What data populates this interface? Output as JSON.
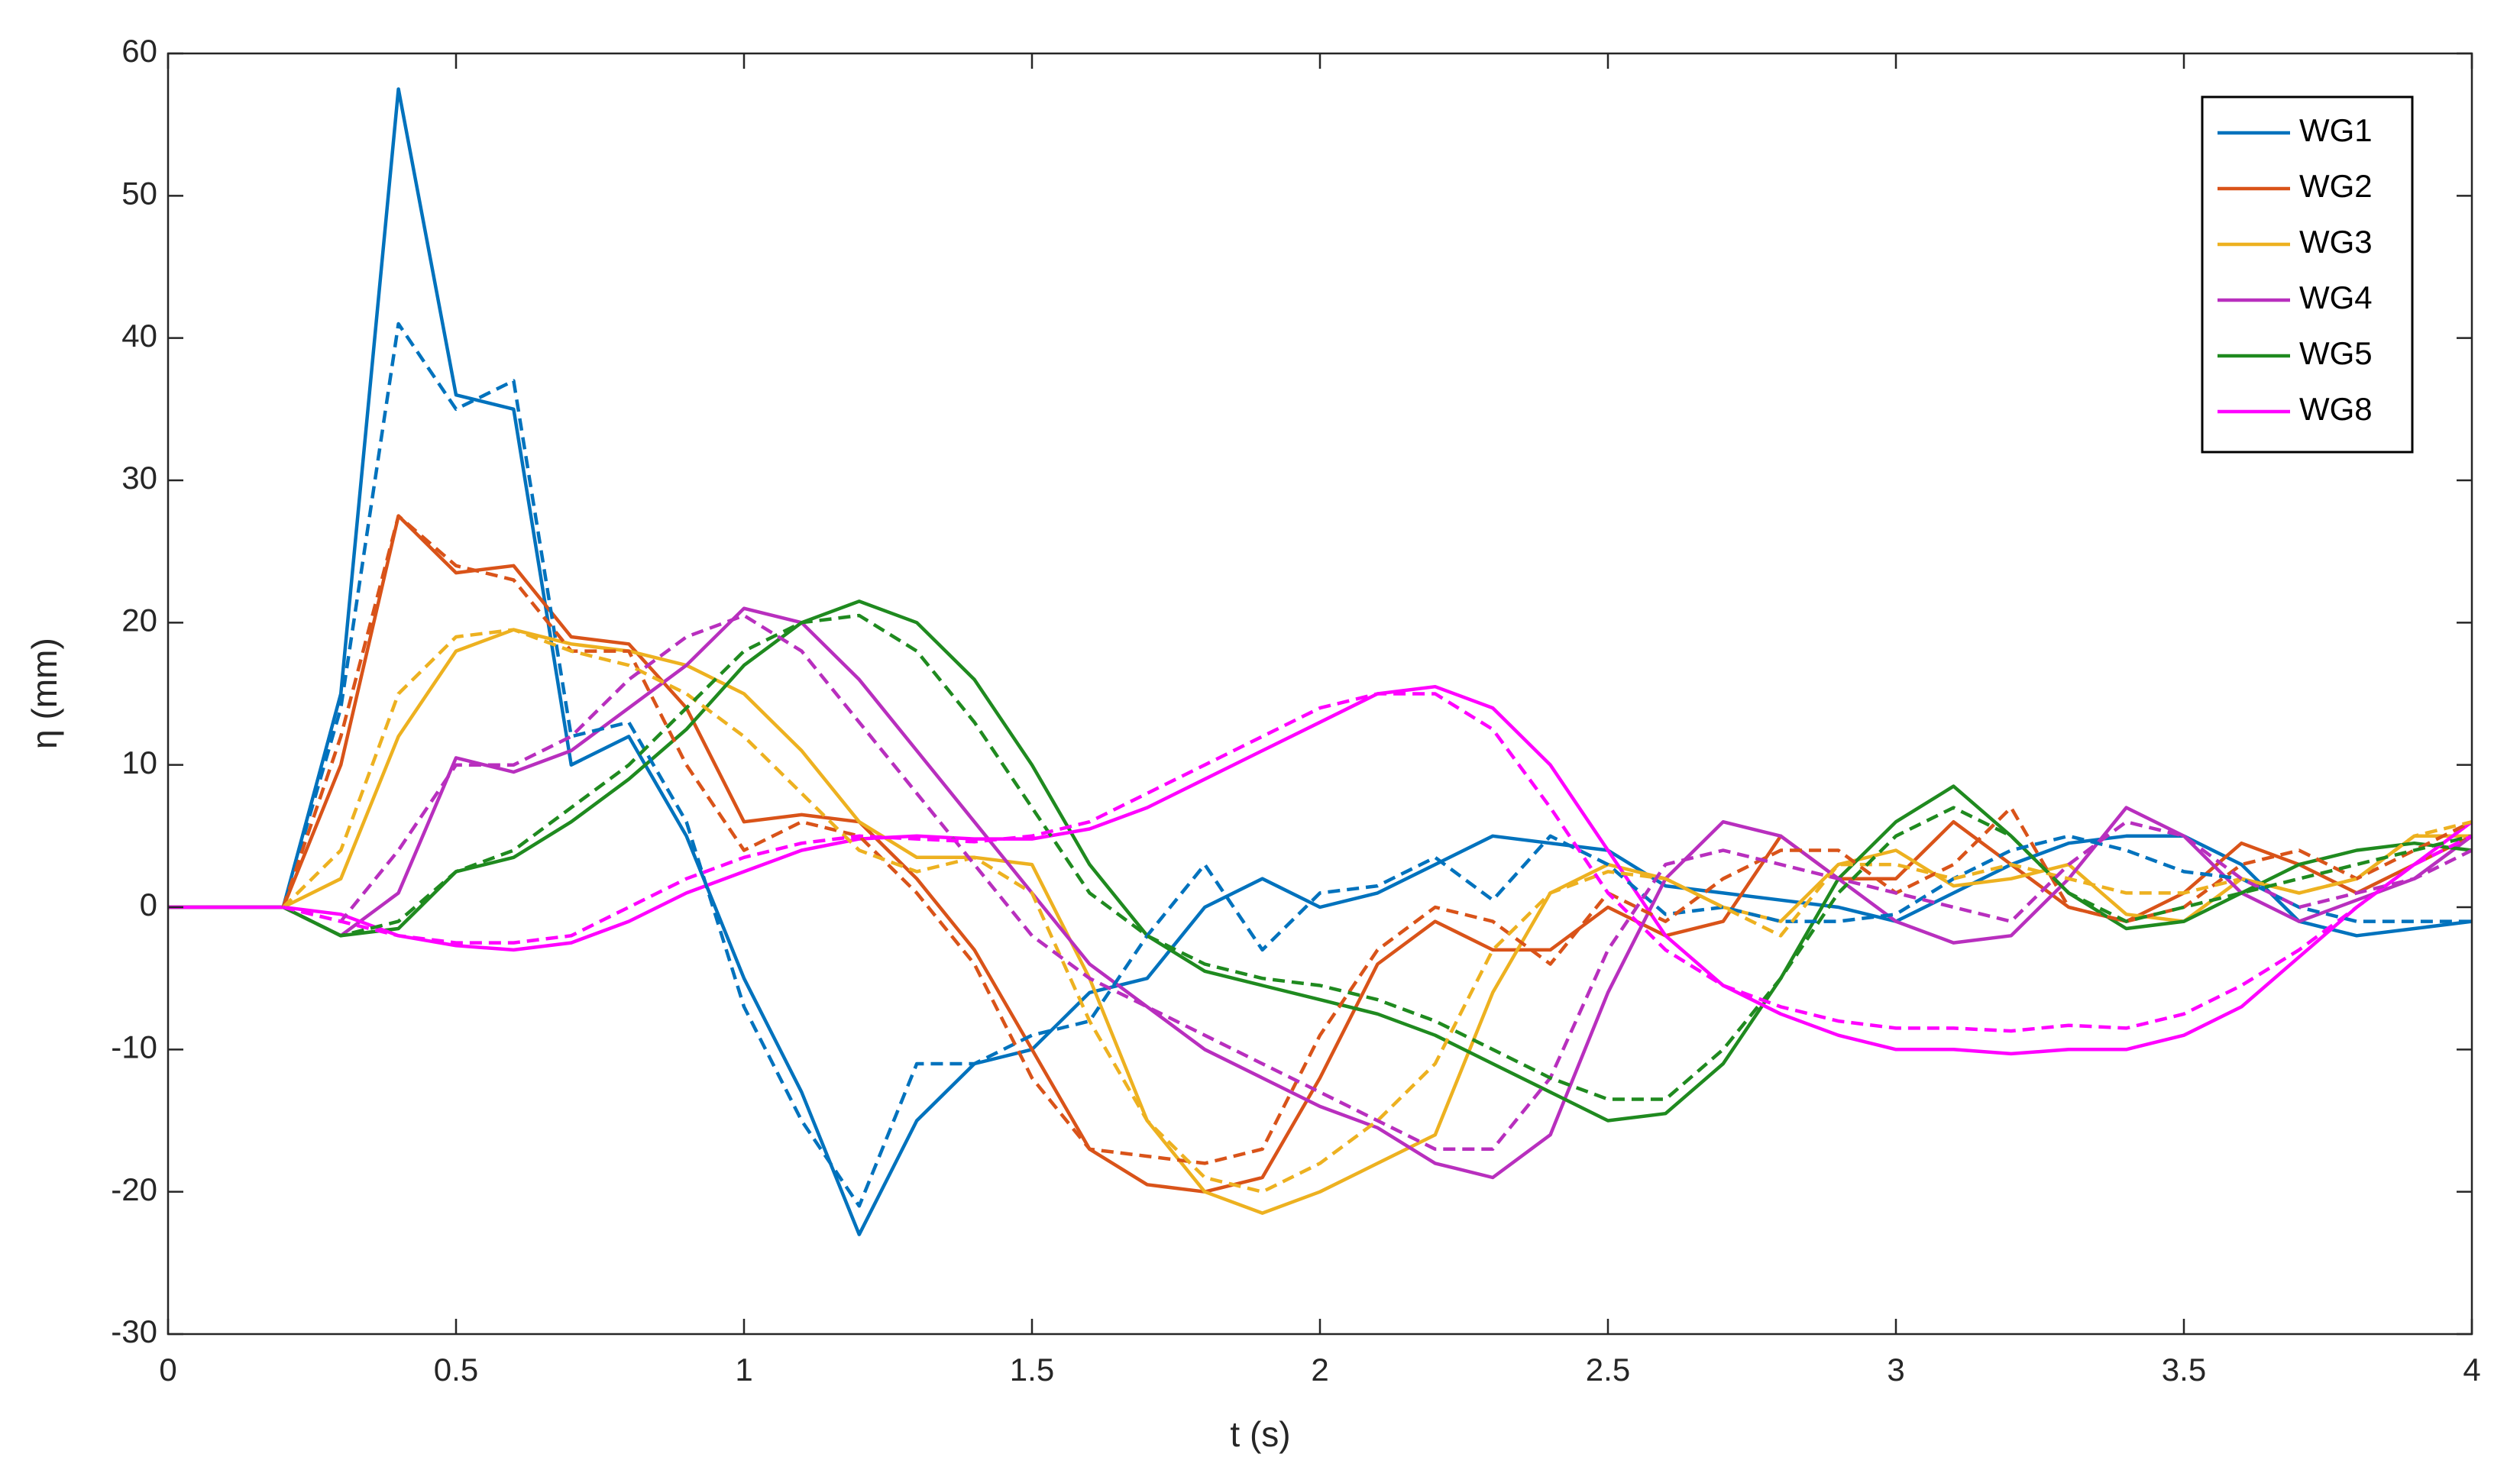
{
  "chart_data": {
    "type": "line",
    "x_label": "t (s)",
    "y_label": "η (mm)",
    "x": [
      0,
      0.1,
      0.2,
      0.3,
      0.4,
      0.5,
      0.6,
      0.7,
      0.8,
      0.9,
      1,
      1.1,
      1.2,
      1.3,
      1.4,
      1.5,
      1.6,
      1.7,
      1.8,
      1.9,
      2,
      2.1,
      2.2,
      2.3,
      2.4,
      2.5,
      2.6,
      2.7,
      2.8,
      2.9,
      3,
      3.1,
      3.2,
      3.3,
      3.4,
      3.5,
      3.6,
      3.7,
      3.8,
      3.9,
      4
    ],
    "xlim": [
      0,
      4
    ],
    "xticks": [
      0,
      0.5,
      1,
      1.5,
      2,
      2.5,
      3,
      3.5,
      4
    ],
    "ylim": [
      -30,
      60
    ],
    "yticks": [
      -30,
      -20,
      -10,
      0,
      10,
      20,
      30,
      40,
      50,
      60
    ],
    "legend": "top-right",
    "series": [
      {
        "name": "WG1",
        "color": "#0072bd",
        "values": [
          0,
          0,
          0,
          15,
          57.5,
          36,
          35,
          10,
          12,
          5,
          -5,
          -13,
          -23,
          -15,
          -11,
          -10,
          -6,
          -5,
          0,
          2,
          0,
          1,
          3,
          5,
          4.5,
          4,
          1.5,
          1,
          0.5,
          0,
          -1,
          1,
          3,
          4.5,
          5,
          5,
          3,
          -1,
          -2,
          -1.5,
          -1
        ]
      },
      {
        "name": "WG2",
        "color": "#d95319",
        "values": [
          0,
          0,
          0,
          10,
          27.5,
          23.5,
          24,
          19,
          18.5,
          14,
          6,
          6.5,
          6,
          2,
          -3,
          -10,
          -17,
          -19.5,
          -20,
          -19,
          -12,
          -4,
          -1,
          -3,
          -3,
          0,
          -2,
          -1,
          5,
          2,
          2,
          6,
          3,
          0,
          -1,
          1,
          4.5,
          3,
          1,
          3,
          5
        ]
      },
      {
        "name": "WG3",
        "color": "#edb120",
        "values": [
          0,
          0,
          0,
          2,
          12,
          18,
          19.5,
          18.5,
          18,
          17,
          15,
          11,
          6,
          3.5,
          3.5,
          3,
          -5,
          -15,
          -20,
          -21.5,
          -20,
          -18,
          -16,
          -6,
          1,
          3,
          2,
          0,
          -1,
          3,
          4,
          1.5,
          2,
          3,
          -0.5,
          -1,
          2,
          1,
          2,
          5,
          5
        ]
      },
      {
        "name": "WG4",
        "color": "#b82fbe",
        "values": [
          0,
          0,
          0,
          -2,
          1,
          10.5,
          9.5,
          11,
          14,
          17,
          21,
          20,
          16,
          11,
          6,
          1,
          -4,
          -7,
          -10,
          -12,
          -14,
          -15.5,
          -18,
          -19,
          -16,
          -6,
          2,
          6,
          5,
          2,
          -1,
          -2.5,
          -2,
          2,
          7,
          5,
          1,
          -1,
          0.5,
          2,
          5
        ]
      },
      {
        "name": "WG5",
        "color": "#1f8a1f",
        "values": [
          0,
          0,
          0,
          -2,
          -1.5,
          2.5,
          3.5,
          6,
          9,
          12.5,
          17,
          20,
          21.5,
          20,
          16,
          10,
          3,
          -2,
          -4.5,
          -5.5,
          -6.5,
          -7.5,
          -9,
          -11,
          -13,
          -15,
          -14.5,
          -11,
          -5,
          2,
          6,
          8.5,
          5,
          1,
          -1.5,
          -1,
          1,
          3,
          4,
          4.5,
          4
        ]
      },
      {
        "name": "WG8",
        "color": "#ff00ff",
        "values": [
          0,
          0,
          0,
          -0.5,
          -2,
          -2.7,
          -3,
          -2.5,
          -1,
          1,
          2.5,
          4,
          4.8,
          5,
          4.8,
          4.8,
          5.5,
          7,
          9,
          11,
          13,
          15,
          15.5,
          14,
          10,
          4,
          -2,
          -5.5,
          -7.5,
          -9,
          -10,
          -10,
          -10.3,
          -10,
          -10,
          -9,
          -7,
          -3.5,
          0,
          3,
          6
        ]
      },
      {
        "color": "#0072bd",
        "dash": true,
        "values": [
          0,
          0,
          0,
          14,
          41,
          35,
          37,
          12,
          13,
          6,
          -7,
          -15,
          -21,
          -11,
          -11,
          -9,
          -8,
          -2,
          3,
          -3,
          1,
          1.5,
          3.5,
          0.5,
          5,
          3,
          -0.5,
          0,
          -1,
          -1,
          -0.5,
          2,
          4,
          5,
          4,
          2.5,
          2,
          0,
          -1,
          -1,
          -1
        ]
      },
      {
        "color": "#d95319",
        "dash": true,
        "values": [
          0,
          0,
          0,
          12,
          27.5,
          24,
          23,
          18,
          18,
          10,
          4,
          6,
          5,
          1,
          -4,
          -12,
          -17,
          -17.5,
          -18,
          -17,
          -9,
          -3,
          0,
          -1,
          -4,
          1,
          -1,
          2,
          4,
          4,
          1,
          3,
          7,
          0,
          -1,
          0,
          3,
          4,
          2,
          4,
          6
        ]
      },
      {
        "color": "#edb120",
        "dash": true,
        "values": [
          0,
          0,
          0,
          4,
          15,
          19,
          19.5,
          18,
          17,
          15,
          12,
          8,
          4,
          2.5,
          3.5,
          1,
          -8,
          -15,
          -19,
          -20,
          -18,
          -15,
          -11,
          -3,
          1,
          2.5,
          2,
          0,
          -2,
          3,
          3,
          2,
          3,
          2,
          1,
          1,
          2,
          1,
          2,
          5,
          6
        ]
      },
      {
        "color": "#b82fbe",
        "dash": true,
        "values": [
          0,
          0,
          0,
          -1,
          4,
          10,
          10,
          12,
          16,
          19,
          20.5,
          18,
          13,
          8,
          3,
          -2,
          -5,
          -7,
          -9,
          -11,
          -13,
          -15,
          -17,
          -17,
          -12,
          -3,
          3,
          4,
          3,
          2,
          1,
          0,
          -1,
          3,
          6,
          5,
          2,
          0,
          1,
          2,
          4
        ]
      },
      {
        "color": "#1f8a1f",
        "dash": true,
        "values": [
          0,
          0,
          0,
          -2,
          -1,
          2.5,
          4,
          7,
          10,
          14,
          18,
          20,
          20.5,
          18,
          13,
          7,
          1,
          -2,
          -4,
          -5,
          -5.5,
          -6.5,
          -8,
          -10,
          -12,
          -13.5,
          -13.5,
          -10,
          -5,
          1,
          5,
          7,
          5,
          1,
          -1,
          0,
          1,
          2,
          3,
          4,
          5
        ]
      },
      {
        "color": "#ff00ff",
        "dash": true,
        "values": [
          0,
          0,
          0,
          -1,
          -2,
          -2.5,
          -2.5,
          -2,
          0,
          2,
          3.5,
          4.5,
          5,
          4.8,
          4.6,
          5,
          6,
          8,
          10,
          12,
          14,
          15,
          15,
          12.5,
          7,
          1,
          -3,
          -5.5,
          -7,
          -8,
          -8.5,
          -8.5,
          -8.7,
          -8.3,
          -8.5,
          -7.5,
          -5.5,
          -3,
          0,
          3,
          5
        ]
      }
    ]
  }
}
